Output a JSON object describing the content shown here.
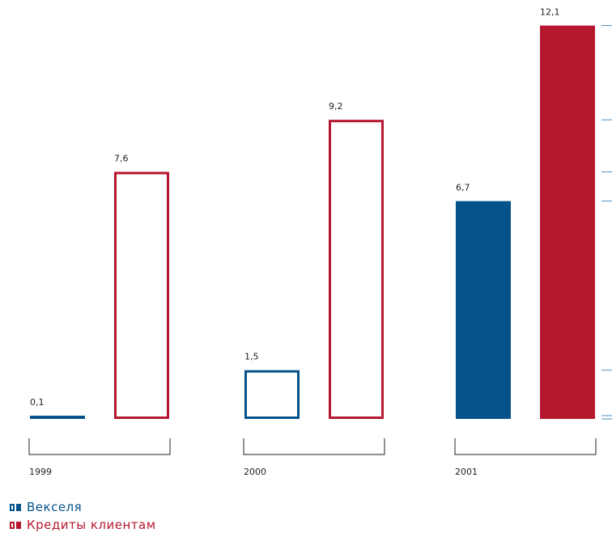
{
  "colors": {
    "blue": "#05538a",
    "red": "#b5182e"
  },
  "chart_data": {
    "type": "bar",
    "categories": [
      "1999",
      "2000",
      "2001"
    ],
    "series": [
      {
        "name": "Векселя",
        "values": [
          0.1,
          1.5,
          6.7
        ],
        "labels": [
          "0,1",
          "1,5",
          "6,7"
        ],
        "filled": [
          true,
          false,
          true
        ]
      },
      {
        "name": "Кредиты клиентам",
        "values": [
          7.6,
          9.2,
          12.1
        ],
        "labels": [
          "7,6",
          "9,2",
          "12,1"
        ],
        "filled": [
          false,
          false,
          true
        ]
      }
    ],
    "legend_position": "bottom-left",
    "grid": false
  },
  "legend": [
    {
      "label": "Векселя",
      "color": "#05538a"
    },
    {
      "label": "Кредиты клиентам",
      "color": "#b5182e"
    }
  ]
}
